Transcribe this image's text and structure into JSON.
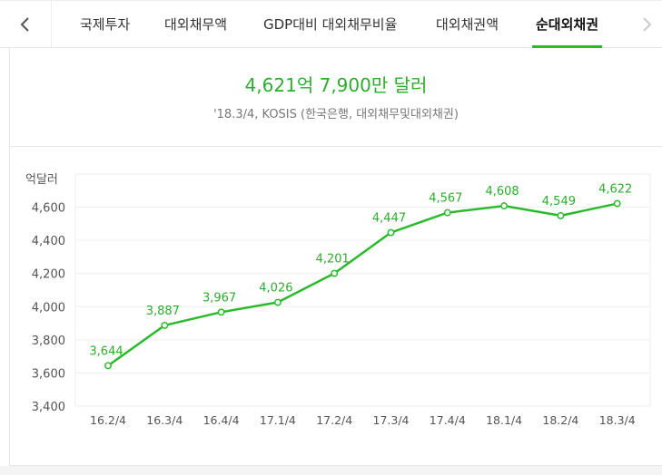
{
  "tabs": {
    "prev_icon": "chevron-left-icon",
    "next_icon": "chevron-right-icon",
    "items": [
      {
        "label": "국제투자"
      },
      {
        "label": "대외채무액"
      },
      {
        "label": "GDP대비 대외채무비율"
      },
      {
        "label": "대외채권액"
      },
      {
        "label": "순대외채권",
        "active": true
      }
    ]
  },
  "summary": {
    "value": "4,621억 7,900만 달러",
    "source": "'18.3/4, KOSIS (한국은행, 대외채무및대외채권)"
  },
  "colors": {
    "accent": "#1ec31e",
    "line": "#2db92d",
    "value_text": "#2dac2d"
  },
  "chart_data": {
    "type": "line",
    "ylabel": "억달러",
    "categories": [
      "16.2/4",
      "16.3/4",
      "16.4/4",
      "17.1/4",
      "17.2/4",
      "17.3/4",
      "17.4/4",
      "18.1/4",
      "18.2/4",
      "18.3/4"
    ],
    "values": [
      3644,
      3887,
      3967,
      4026,
      4201,
      4447,
      4567,
      4608,
      4549,
      4622
    ],
    "data_labels": [
      "3,644",
      "3,887",
      "3,967",
      "4,026",
      "4,201",
      "4,447",
      "4,567",
      "4,608",
      "4,549",
      "4,622"
    ],
    "yticks": [
      3400,
      3600,
      3800,
      4000,
      4200,
      4400,
      4600
    ],
    "ytick_labels": [
      "3,400",
      "3,600",
      "3,800",
      "4,000",
      "4,200",
      "4,400",
      "4,600"
    ],
    "ylim": [
      3400,
      4800
    ],
    "grid": true,
    "legend": false
  }
}
